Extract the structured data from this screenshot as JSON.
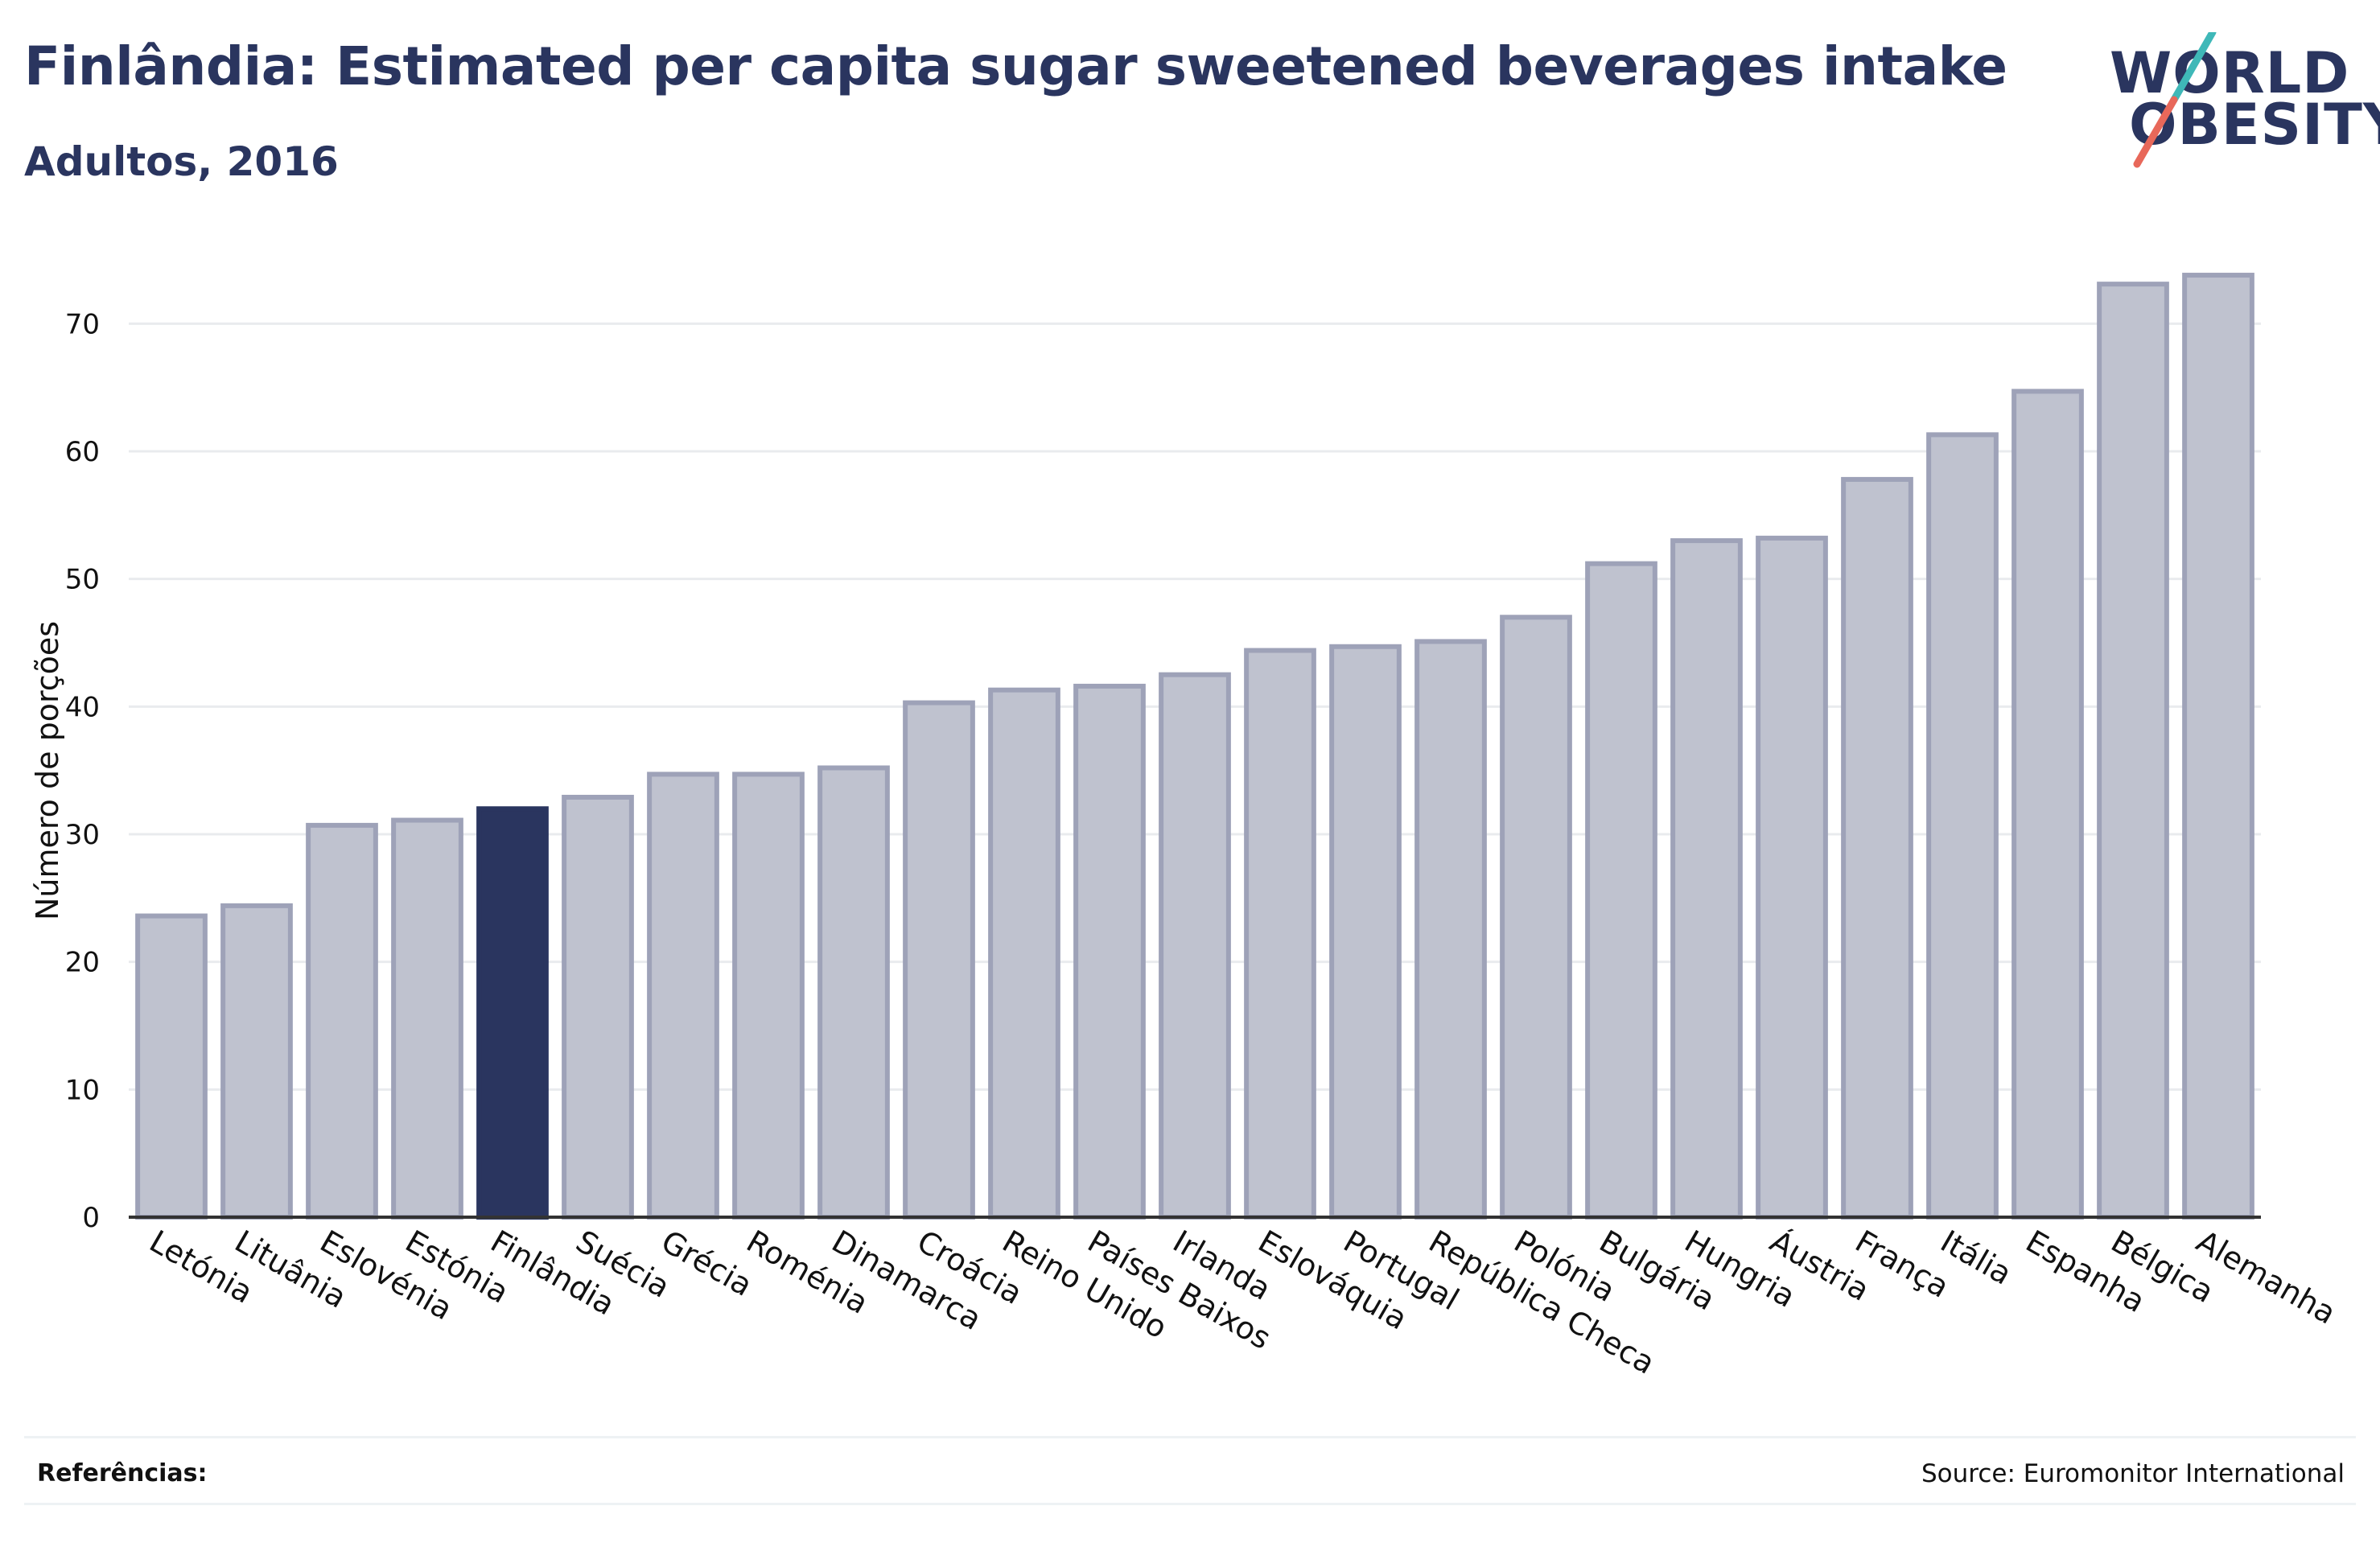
{
  "title": "Finlândia: Estimated per capita sugar sweetened beverages intake",
  "subtitle": "Adultos, 2016",
  "logo": {
    "line1": "WORLD",
    "line2": "OBESITY",
    "slash_colors": [
      "#3fb8b8",
      "#e8685a"
    ]
  },
  "footer": {
    "references_label": "Referências:",
    "source": "Source: Euromonitor International"
  },
  "colors": {
    "highlight": "#2a355f",
    "bar": "#bfc2cf",
    "bar_border": "#9ea2b8",
    "text": "#2a355f",
    "grid": "#e9ebee"
  },
  "chart_data": {
    "type": "bar",
    "title": "Finlândia: Estimated per capita sugar sweetened beverages intake",
    "subtitle": "Adultos, 2016",
    "xlabel": "",
    "ylabel": "Número de porções",
    "ylim": [
      0,
      75
    ],
    "yticks": [
      0,
      10,
      20,
      30,
      40,
      50,
      60,
      70
    ],
    "grid": true,
    "highlight": "Finlândia",
    "categories": [
      "Letónia",
      "Lituânia",
      "Eslovénia",
      "Estónia",
      "Finlândia",
      "Suécia",
      "Grécia",
      "Roménia",
      "Dinamarca",
      "Croácia",
      "Reino Unido",
      "Países Baixos",
      "Irlanda",
      "Eslováquia",
      "Portugal",
      "República Checa",
      "Polónia",
      "Bulgária",
      "Hungria",
      "Áustria",
      "França",
      "Itália",
      "Espanha",
      "Bélgica",
      "Alemanha"
    ],
    "values": [
      23.6,
      24.4,
      30.7,
      31.1,
      32.0,
      32.9,
      34.7,
      34.7,
      35.2,
      40.3,
      41.3,
      41.6,
      42.5,
      44.4,
      44.7,
      45.1,
      47.0,
      51.2,
      53.0,
      53.2,
      57.8,
      61.3,
      64.7,
      73.1,
      73.8
    ]
  }
}
